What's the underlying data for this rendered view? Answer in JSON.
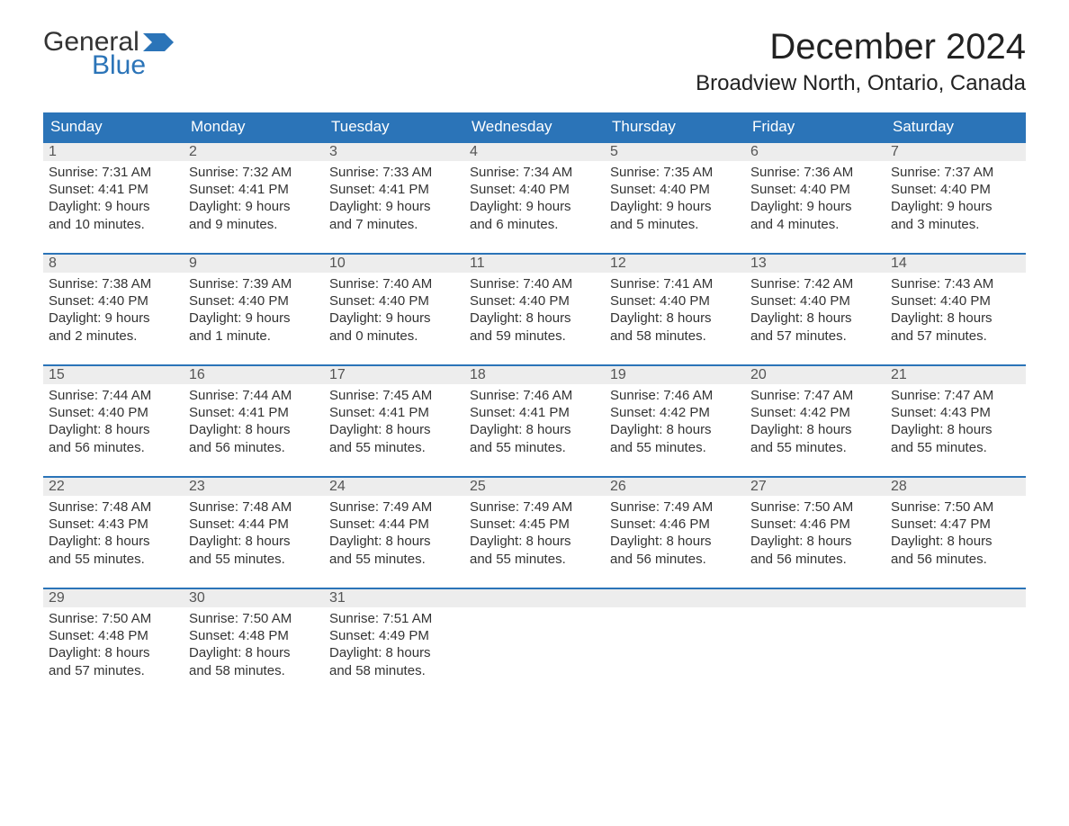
{
  "logo": {
    "text1": "General",
    "text2": "Blue",
    "flag_color": "#2b74b8"
  },
  "title": {
    "month": "December 2024",
    "location": "Broadview North, Ontario, Canada"
  },
  "colors": {
    "header_bg": "#2b74b8",
    "header_text": "#ffffff",
    "daynum_bg": "#ededed",
    "body_text": "#333333",
    "page_bg": "#ffffff"
  },
  "calendar": {
    "type": "calendar-table",
    "columns": [
      "Sunday",
      "Monday",
      "Tuesday",
      "Wednesday",
      "Thursday",
      "Friday",
      "Saturday"
    ],
    "start_weekday": 0,
    "days": [
      {
        "n": 1,
        "sunrise": "7:31 AM",
        "sunset": "4:41 PM",
        "dl1": "9 hours",
        "dl2": "and 10 minutes."
      },
      {
        "n": 2,
        "sunrise": "7:32 AM",
        "sunset": "4:41 PM",
        "dl1": "9 hours",
        "dl2": "and 9 minutes."
      },
      {
        "n": 3,
        "sunrise": "7:33 AM",
        "sunset": "4:41 PM",
        "dl1": "9 hours",
        "dl2": "and 7 minutes."
      },
      {
        "n": 4,
        "sunrise": "7:34 AM",
        "sunset": "4:40 PM",
        "dl1": "9 hours",
        "dl2": "and 6 minutes."
      },
      {
        "n": 5,
        "sunrise": "7:35 AM",
        "sunset": "4:40 PM",
        "dl1": "9 hours",
        "dl2": "and 5 minutes."
      },
      {
        "n": 6,
        "sunrise": "7:36 AM",
        "sunset": "4:40 PM",
        "dl1": "9 hours",
        "dl2": "and 4 minutes."
      },
      {
        "n": 7,
        "sunrise": "7:37 AM",
        "sunset": "4:40 PM",
        "dl1": "9 hours",
        "dl2": "and 3 minutes."
      },
      {
        "n": 8,
        "sunrise": "7:38 AM",
        "sunset": "4:40 PM",
        "dl1": "9 hours",
        "dl2": "and 2 minutes."
      },
      {
        "n": 9,
        "sunrise": "7:39 AM",
        "sunset": "4:40 PM",
        "dl1": "9 hours",
        "dl2": "and 1 minute."
      },
      {
        "n": 10,
        "sunrise": "7:40 AM",
        "sunset": "4:40 PM",
        "dl1": "9 hours",
        "dl2": "and 0 minutes."
      },
      {
        "n": 11,
        "sunrise": "7:40 AM",
        "sunset": "4:40 PM",
        "dl1": "8 hours",
        "dl2": "and 59 minutes."
      },
      {
        "n": 12,
        "sunrise": "7:41 AM",
        "sunset": "4:40 PM",
        "dl1": "8 hours",
        "dl2": "and 58 minutes."
      },
      {
        "n": 13,
        "sunrise": "7:42 AM",
        "sunset": "4:40 PM",
        "dl1": "8 hours",
        "dl2": "and 57 minutes."
      },
      {
        "n": 14,
        "sunrise": "7:43 AM",
        "sunset": "4:40 PM",
        "dl1": "8 hours",
        "dl2": "and 57 minutes."
      },
      {
        "n": 15,
        "sunrise": "7:44 AM",
        "sunset": "4:40 PM",
        "dl1": "8 hours",
        "dl2": "and 56 minutes."
      },
      {
        "n": 16,
        "sunrise": "7:44 AM",
        "sunset": "4:41 PM",
        "dl1": "8 hours",
        "dl2": "and 56 minutes."
      },
      {
        "n": 17,
        "sunrise": "7:45 AM",
        "sunset": "4:41 PM",
        "dl1": "8 hours",
        "dl2": "and 55 minutes."
      },
      {
        "n": 18,
        "sunrise": "7:46 AM",
        "sunset": "4:41 PM",
        "dl1": "8 hours",
        "dl2": "and 55 minutes."
      },
      {
        "n": 19,
        "sunrise": "7:46 AM",
        "sunset": "4:42 PM",
        "dl1": "8 hours",
        "dl2": "and 55 minutes."
      },
      {
        "n": 20,
        "sunrise": "7:47 AM",
        "sunset": "4:42 PM",
        "dl1": "8 hours",
        "dl2": "and 55 minutes."
      },
      {
        "n": 21,
        "sunrise": "7:47 AM",
        "sunset": "4:43 PM",
        "dl1": "8 hours",
        "dl2": "and 55 minutes."
      },
      {
        "n": 22,
        "sunrise": "7:48 AM",
        "sunset": "4:43 PM",
        "dl1": "8 hours",
        "dl2": "and 55 minutes."
      },
      {
        "n": 23,
        "sunrise": "7:48 AM",
        "sunset": "4:44 PM",
        "dl1": "8 hours",
        "dl2": "and 55 minutes."
      },
      {
        "n": 24,
        "sunrise": "7:49 AM",
        "sunset": "4:44 PM",
        "dl1": "8 hours",
        "dl2": "and 55 minutes."
      },
      {
        "n": 25,
        "sunrise": "7:49 AM",
        "sunset": "4:45 PM",
        "dl1": "8 hours",
        "dl2": "and 55 minutes."
      },
      {
        "n": 26,
        "sunrise": "7:49 AM",
        "sunset": "4:46 PM",
        "dl1": "8 hours",
        "dl2": "and 56 minutes."
      },
      {
        "n": 27,
        "sunrise": "7:50 AM",
        "sunset": "4:46 PM",
        "dl1": "8 hours",
        "dl2": "and 56 minutes."
      },
      {
        "n": 28,
        "sunrise": "7:50 AM",
        "sunset": "4:47 PM",
        "dl1": "8 hours",
        "dl2": "and 56 minutes."
      },
      {
        "n": 29,
        "sunrise": "7:50 AM",
        "sunset": "4:48 PM",
        "dl1": "8 hours",
        "dl2": "and 57 minutes."
      },
      {
        "n": 30,
        "sunrise": "7:50 AM",
        "sunset": "4:48 PM",
        "dl1": "8 hours",
        "dl2": "and 58 minutes."
      },
      {
        "n": 31,
        "sunrise": "7:51 AM",
        "sunset": "4:49 PM",
        "dl1": "8 hours",
        "dl2": "and 58 minutes."
      }
    ],
    "labels": {
      "sunrise": "Sunrise: ",
      "sunset": "Sunset: ",
      "daylight": "Daylight: "
    }
  }
}
